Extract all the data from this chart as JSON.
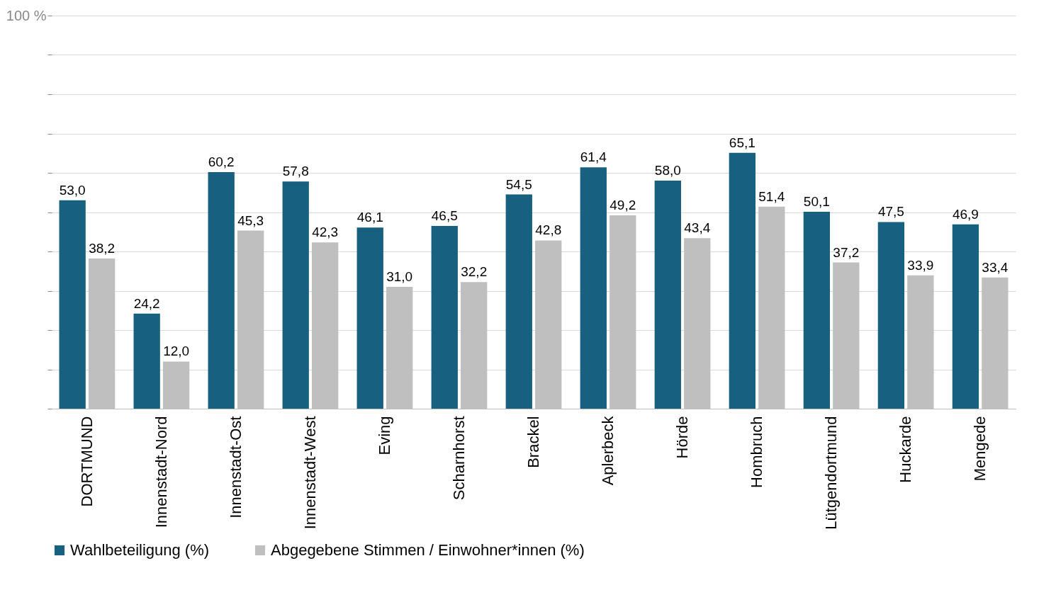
{
  "chart_data": {
    "type": "bar",
    "categories": [
      "DORTMUND",
      "Innenstadt-Nord",
      "Innenstadt-Ost",
      "Innenstadt-West",
      "Eving",
      "Scharnhorst",
      "Brackel",
      "Aplerbeck",
      "Hörde",
      "Hombruch",
      "Lütgendortmund",
      "Huckarde",
      "Mengede"
    ],
    "series": [
      {
        "name": "Wahlbeteiligung (%)",
        "color": "#17607f",
        "values": [
          53.0,
          24.2,
          60.2,
          57.8,
          46.1,
          46.5,
          54.5,
          61.4,
          58.0,
          65.1,
          50.1,
          47.5,
          46.9
        ],
        "value_labels": [
          "53,0",
          "24,2",
          "60,2",
          "57,8",
          "46,1",
          "46,5",
          "54,5",
          "61,4",
          "58,0",
          "65,1",
          "50,1",
          "47,5",
          "46,9"
        ]
      },
      {
        "name": "Abgegebene Stimmen / Einwohner*innen (%)",
        "color": "#bfbfbf",
        "values": [
          38.2,
          12.0,
          45.3,
          42.3,
          31.0,
          32.2,
          42.8,
          49.2,
          43.4,
          51.4,
          37.2,
          33.9,
          33.4
        ],
        "value_labels": [
          "38,2",
          "12,0",
          "45,3",
          "42,3",
          "31,0",
          "32,2",
          "42,8",
          "49,2",
          "43,4",
          "51,4",
          "37,2",
          "33,9",
          "33,4"
        ]
      }
    ],
    "ylim": [
      0,
      100
    ],
    "yticks": [
      {
        "value": 0,
        "label": null
      },
      {
        "value": 10,
        "label": null
      },
      {
        "value": 20,
        "label": null
      },
      {
        "value": 30,
        "label": null
      },
      {
        "value": 40,
        "label": null
      },
      {
        "value": 50,
        "label": null
      },
      {
        "value": 60,
        "label": null
      },
      {
        "value": 70,
        "label": null
      },
      {
        "value": 80,
        "label": null
      },
      {
        "value": 90,
        "label": null
      },
      {
        "value": 100,
        "label": "100 %"
      }
    ],
    "grid": "y",
    "legend": "bottom"
  }
}
